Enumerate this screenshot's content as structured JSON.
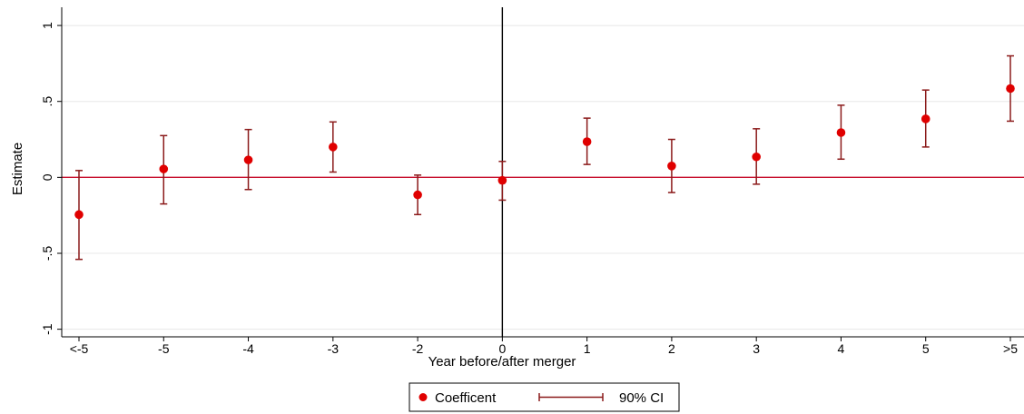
{
  "chart_data": {
    "type": "scatter",
    "title": "",
    "xlabel": "Year before/after merger",
    "ylabel": "Estimate",
    "categories": [
      "<-5",
      "-5",
      "-4",
      "-3",
      "-2",
      "0",
      "1",
      "2",
      "3",
      "4",
      "5",
      ">5"
    ],
    "ylim": [
      -1.05,
      1.12
    ],
    "yticks": [
      -1,
      -0.5,
      0,
      0.5,
      1
    ],
    "ytick_labels": [
      "-1",
      "-.5",
      "0",
      ".5",
      "1"
    ],
    "grid": true,
    "reference_lines": {
      "horizontal_at": 0,
      "vertical_at_category": "0"
    },
    "series": [
      {
        "name": "Coefficent",
        "values": [
          -0.245,
          0.055,
          0.115,
          0.2,
          -0.115,
          -0.02,
          0.235,
          0.075,
          0.135,
          0.295,
          0.385,
          0.585
        ]
      },
      {
        "name": "90% CI",
        "lower": [
          -0.54,
          -0.175,
          -0.08,
          0.035,
          -0.245,
          -0.15,
          0.085,
          -0.1,
          -0.045,
          0.12,
          0.2,
          0.37
        ],
        "upper": [
          0.045,
          0.275,
          0.315,
          0.365,
          0.015,
          0.105,
          0.39,
          0.25,
          0.32,
          0.475,
          0.575,
          0.8
        ]
      }
    ],
    "legend": {
      "position": "bottom-center",
      "items": [
        {
          "label": "Coefficent",
          "marker": "dot"
        },
        {
          "label": "90% CI",
          "marker": "capped-bar"
        }
      ]
    },
    "colors": {
      "point": "#e00000",
      "ci": "#8b1a1a",
      "zero_line": "#c8102e",
      "vertical_line": "#000000",
      "grid": "#e8e8e8",
      "axis": "#000000"
    }
  }
}
